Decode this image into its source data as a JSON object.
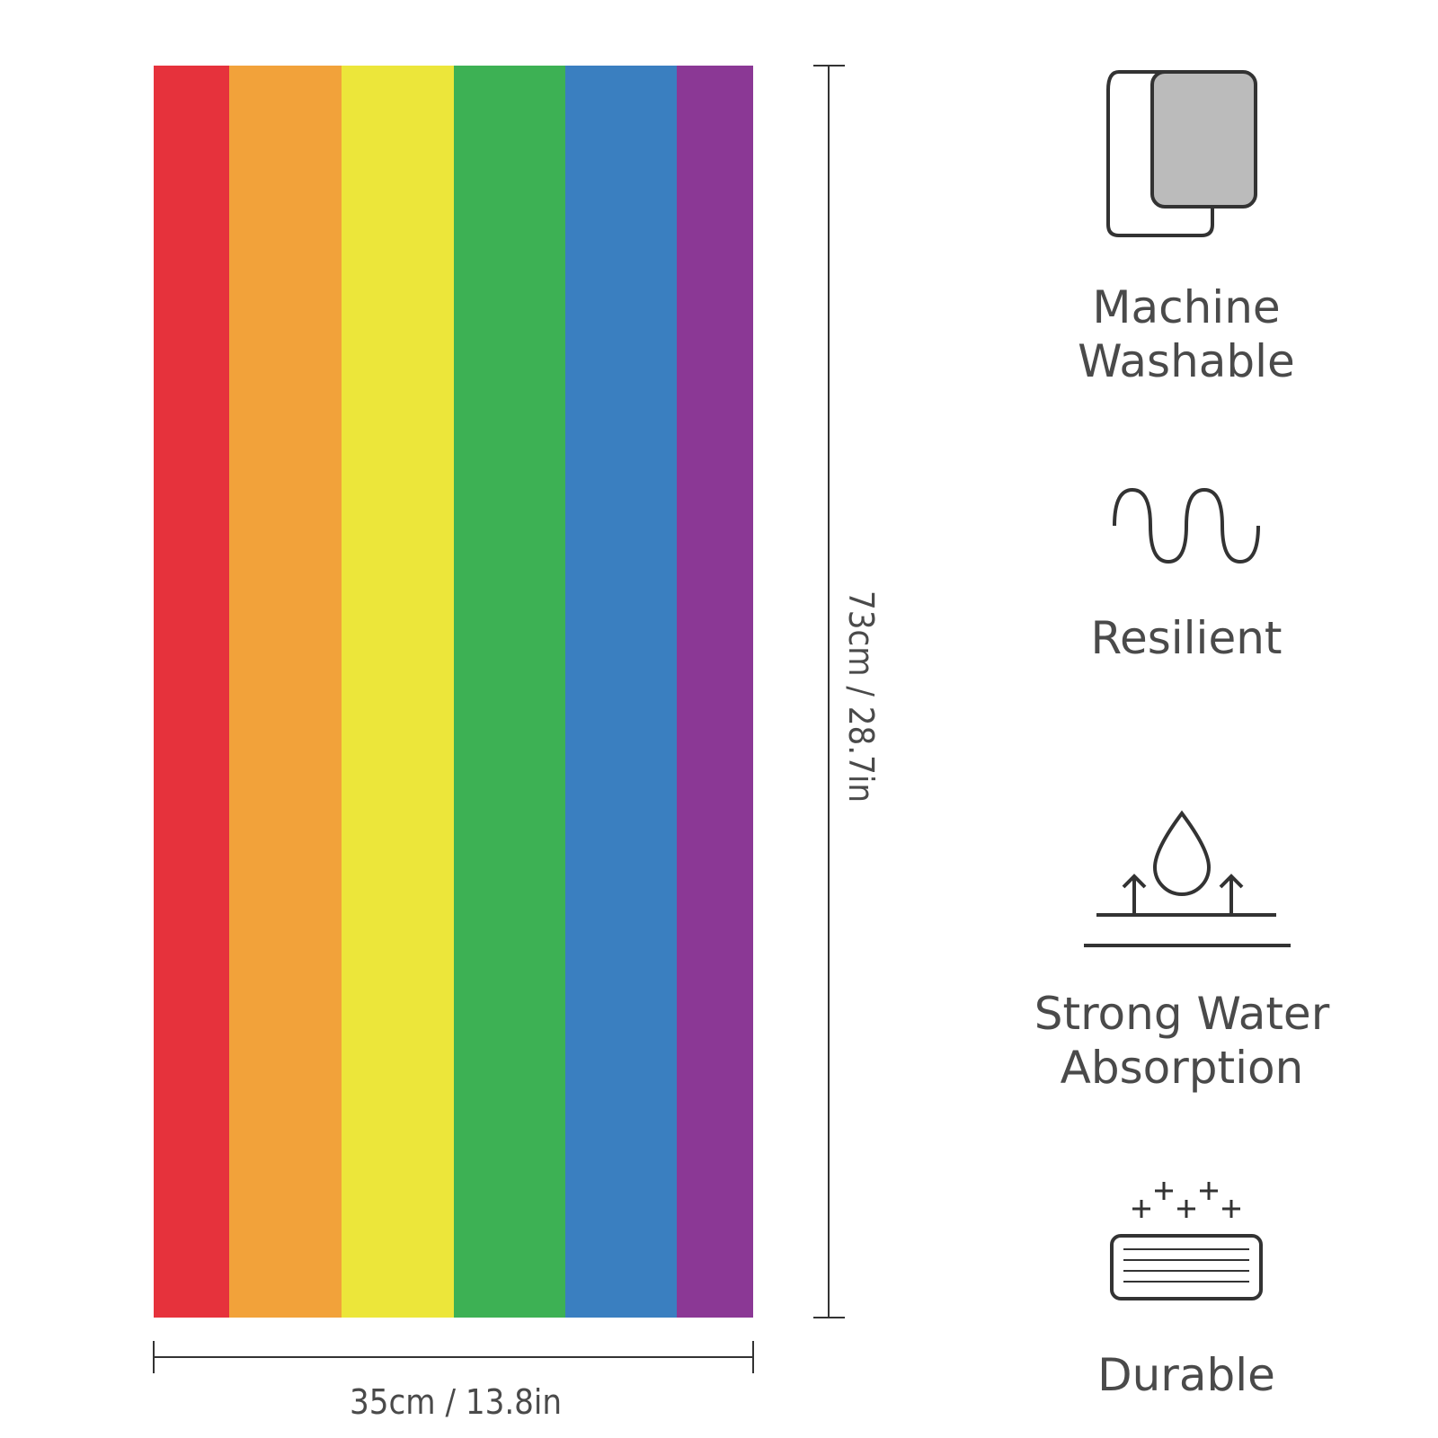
{
  "dimensions": {
    "width": "35cm / 13.8in",
    "height": "73cm / 28.7in"
  },
  "features": [
    {
      "label": "Machine\nWashable"
    },
    {
      "label": "Resilient"
    },
    {
      "label": "Strong Water\nAbsorption"
    },
    {
      "label": "Durable"
    }
  ]
}
